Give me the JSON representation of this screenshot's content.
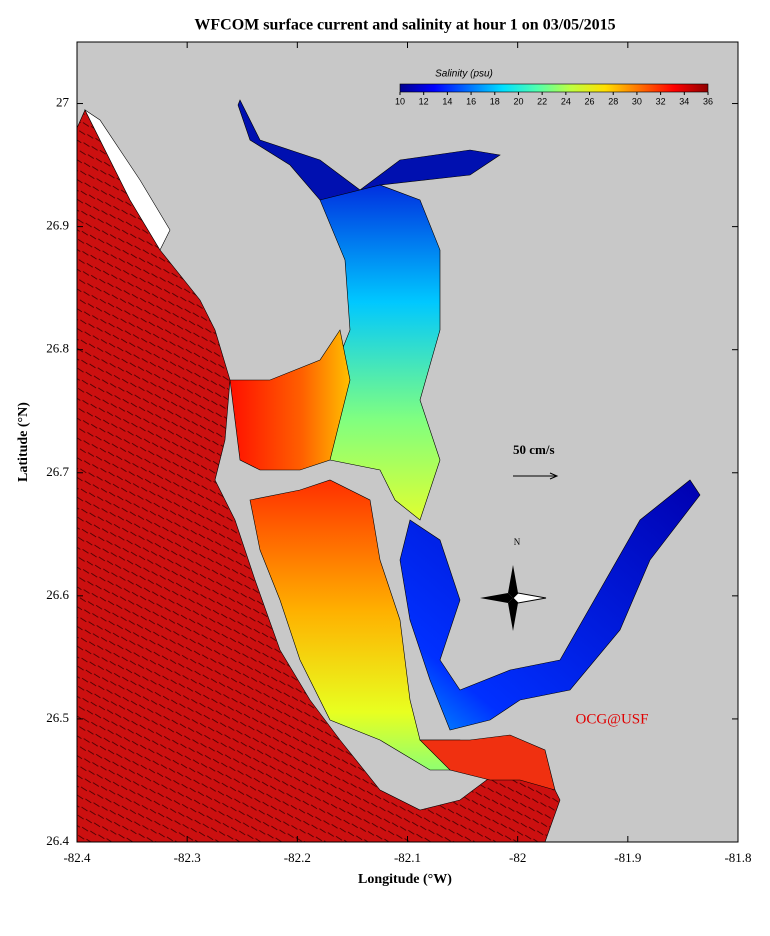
{
  "map": {
    "title": "WFCOM surface current and salinity at hour 1 on 03/05/2015",
    "xlabel": "Longitude (°W)",
    "ylabel": "Latitude (°N)",
    "xlim": [
      -82.4,
      -81.8
    ],
    "ylim": [
      26.4,
      27.05
    ],
    "xticks": [
      -82.4,
      -82.3,
      -82.2,
      -82.1,
      -82,
      -81.9,
      -81.8
    ],
    "yticks": [
      26.4,
      26.5,
      26.6,
      26.7,
      26.8,
      26.9,
      27
    ],
    "colorbar": {
      "title": "Salinity (psu)",
      "lim": [
        10,
        36
      ],
      "ticks": [
        10,
        12,
        14,
        16,
        18,
        20,
        22,
        24,
        26,
        28,
        30,
        32,
        34,
        36
      ],
      "colors": [
        "#00008f",
        "#0000ff",
        "#0070ff",
        "#00dfff",
        "#50ffaf",
        "#bfff40",
        "#ffdf00",
        "#ff7000",
        "#ff0000",
        "#8f0000"
      ]
    },
    "scale_label": "50 cm/s",
    "north_label": "N",
    "credit": "OCG@USF"
  }
}
